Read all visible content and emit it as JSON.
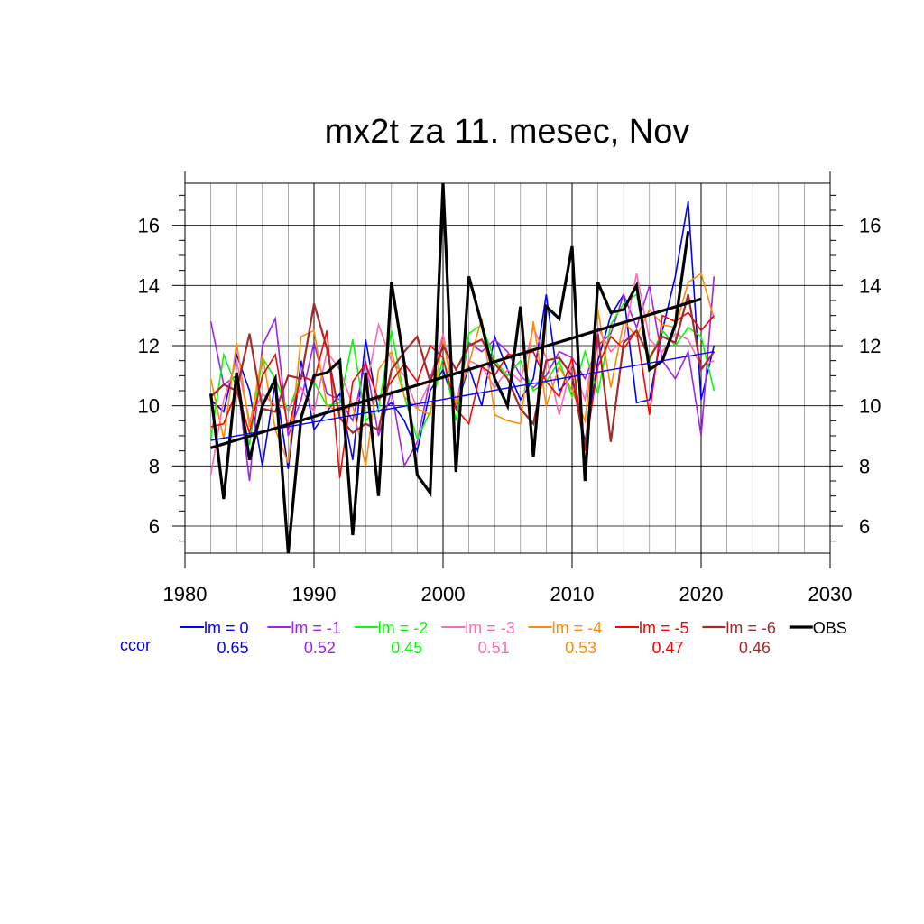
{
  "chart_data": {
    "type": "line",
    "title": "mx2t za 11. mesec, Nov",
    "xlabel": "",
    "ylabel": "",
    "xlim": [
      1980,
      2030
    ],
    "ylim": [
      5.1,
      17.4
    ],
    "x_ticks": [
      1980,
      1990,
      2000,
      2010,
      2020,
      2030
    ],
    "y_ticks": [
      6,
      8,
      10,
      12,
      14,
      16
    ],
    "grid": true,
    "legend_position": "bottom",
    "corr_label": "ccor",
    "series": [
      {
        "name": "lm = 0",
        "color": "#0000ff",
        "width": 1.6,
        "ccor": "0.65",
        "x": [
          1982,
          1983,
          1984,
          1985,
          1986,
          1987,
          1988,
          1989,
          1990,
          1991,
          1992,
          1993,
          1994,
          1995,
          1996,
          1997,
          1998,
          1999,
          2000,
          2001,
          2002,
          2003,
          2004,
          2005,
          2006,
          2007,
          2008,
          2009,
          2010,
          2011,
          2012,
          2013,
          2014,
          2015,
          2016,
          2017,
          2018,
          2019,
          2020,
          2021
        ],
        "values": [
          10.2,
          9.8,
          11.7,
          10.5,
          8.0,
          10.8,
          7.9,
          11.5,
          9.2,
          9.8,
          10.4,
          8.2,
          12.2,
          9.8,
          10.1,
          9.5,
          8.5,
          10.5,
          11.2,
          9.9,
          11.3,
          10.0,
          12.3,
          11.2,
          10.2,
          10.9,
          13.7,
          10.5,
          11.0,
          8.8,
          11.5,
          13.0,
          13.7,
          10.1,
          10.2,
          12.5,
          14.3,
          16.8,
          10.2,
          12.0
        ]
      },
      {
        "name": "lm = -1",
        "color": "#a020f0",
        "width": 1.6,
        "ccor": "0.52",
        "x": [
          1982,
          1983,
          1984,
          1985,
          1986,
          1987,
          1988,
          1989,
          1990,
          1991,
          1992,
          1993,
          1994,
          1995,
          1996,
          1997,
          1998,
          1999,
          2000,
          2001,
          2002,
          2003,
          2004,
          2005,
          2006,
          2007,
          2008,
          2009,
          2010,
          2011,
          2012,
          2013,
          2014,
          2015,
          2016,
          2017,
          2018,
          2019,
          2020,
          2021
        ],
        "values": [
          12.8,
          10.7,
          11.0,
          7.5,
          12.0,
          12.9,
          9.0,
          10.2,
          12.1,
          10.4,
          10.2,
          9.5,
          11.5,
          9.0,
          10.5,
          8.0,
          8.8,
          10.9,
          12.3,
          10.0,
          12.1,
          11.8,
          12.2,
          11.8,
          11.0,
          10.6,
          11.0,
          11.8,
          11.6,
          10.9,
          12.0,
          12.4,
          13.7,
          12.6,
          14.0,
          11.5,
          10.9,
          11.8,
          9.0,
          14.3
        ]
      },
      {
        "name": "lm = -2",
        "color": "#00ff00",
        "width": 1.6,
        "ccor": "0.45",
        "x": [
          1982,
          1983,
          1984,
          1985,
          1986,
          1987,
          1988,
          1989,
          1990,
          1991,
          1992,
          1993,
          1994,
          1995,
          1996,
          1997,
          1998,
          1999,
          2000,
          2001,
          2002,
          2003,
          2004,
          2005,
          2006,
          2007,
          2008,
          2009,
          2010,
          2011,
          2012,
          2013,
          2014,
          2015,
          2016,
          2017,
          2018,
          2019,
          2020,
          2021
        ],
        "values": [
          8.9,
          11.7,
          10.6,
          8.7,
          11.6,
          10.9,
          9.8,
          11.0,
          10.8,
          10.0,
          10.1,
          12.2,
          9.5,
          9.9,
          12.5,
          10.3,
          8.9,
          9.8,
          11.6,
          9.5,
          12.4,
          12.7,
          11.5,
          11.0,
          11.5,
          10.5,
          10.8,
          11.5,
          10.3,
          11.8,
          10.4,
          12.7,
          13.4,
          13.7,
          11.5,
          12.5,
          12.0,
          12.6,
          12.3,
          10.5
        ]
      },
      {
        "name": "lm = -3",
        "color": "#ff69b4",
        "width": 1.6,
        "ccor": "0.51",
        "x": [
          1982,
          1983,
          1984,
          1985,
          1986,
          1987,
          1988,
          1989,
          1990,
          1991,
          1992,
          1993,
          1994,
          1995,
          1996,
          1997,
          1998,
          1999,
          2000,
          2001,
          2002,
          2003,
          2004,
          2005,
          2006,
          2007,
          2008,
          2009,
          2010,
          2011,
          2012,
          2013,
          2014,
          2015,
          2016,
          2017,
          2018,
          2019,
          2020,
          2021
        ],
        "values": [
          7.7,
          10.2,
          11.5,
          9.5,
          10.4,
          10.0,
          9.9,
          10.6,
          9.8,
          11.8,
          11.2,
          10.0,
          10.5,
          12.7,
          11.5,
          11.0,
          9.9,
          10.8,
          12.4,
          10.1,
          11.5,
          11.3,
          10.6,
          11.2,
          10.8,
          12.6,
          11.6,
          9.7,
          11.4,
          10.2,
          12.6,
          11.8,
          12.2,
          14.4,
          12.2,
          11.8,
          12.4,
          12.2,
          11.3,
          11.5
        ]
      },
      {
        "name": "lm = -4",
        "color": "#ff8c00",
        "width": 1.6,
        "ccor": "0.53",
        "x": [
          1982,
          1983,
          1984,
          1985,
          1986,
          1987,
          1988,
          1989,
          1990,
          1991,
          1992,
          1993,
          1994,
          1995,
          1996,
          1997,
          1998,
          1999,
          2000,
          2001,
          2002,
          2003,
          2004,
          2005,
          2006,
          2007,
          2008,
          2009,
          2010,
          2011,
          2012,
          2013,
          2014,
          2015,
          2016,
          2017,
          2018,
          2019,
          2020,
          2021
        ],
        "values": [
          10.9,
          8.9,
          12.1,
          9.3,
          11.7,
          9.2,
          8.1,
          12.3,
          12.5,
          10.0,
          9.8,
          10.0,
          8.0,
          11.2,
          11.8,
          10.3,
          9.9,
          9.7,
          12.2,
          10.0,
          11.4,
          12.9,
          9.7,
          9.5,
          9.4,
          12.8,
          10.0,
          11.3,
          10.5,
          9.5,
          13.2,
          10.6,
          12.8,
          12.3,
          13.2,
          12.7,
          12.6,
          14.1,
          14.4,
          12.9
        ]
      },
      {
        "name": "lm = -5",
        "color": "#ff0000",
        "width": 1.6,
        "ccor": "0.47",
        "x": [
          1982,
          1983,
          1984,
          1985,
          1986,
          1987,
          1988,
          1989,
          1990,
          1991,
          1992,
          1993,
          1994,
          1995,
          1996,
          1997,
          1998,
          1999,
          2000,
          2001,
          2002,
          2003,
          2004,
          2005,
          2006,
          2007,
          2008,
          2009,
          2010,
          2011,
          2012,
          2013,
          2014,
          2015,
          2016,
          2017,
          2018,
          2019,
          2020,
          2021
        ],
        "values": [
          9.3,
          9.4,
          10.5,
          9.1,
          11.0,
          11.7,
          9.2,
          11.0,
          10.8,
          12.5,
          7.6,
          10.8,
          11.4,
          10.2,
          10.8,
          11.4,
          10.8,
          12.0,
          11.6,
          9.9,
          9.4,
          11.3,
          11.0,
          11.7,
          11.7,
          11.8,
          10.8,
          10.3,
          11.6,
          8.5,
          11.3,
          12.3,
          11.9,
          12.5,
          9.7,
          13.0,
          12.8,
          13.1,
          12.5,
          13.0
        ]
      },
      {
        "name": "lm = -6",
        "color": "#a52a2a",
        "width": 2.2,
        "ccor": "0.46",
        "x": [
          1982,
          1983,
          1984,
          1985,
          1986,
          1987,
          1988,
          1989,
          1990,
          1991,
          1992,
          1993,
          1994,
          1995,
          1996,
          1997,
          1998,
          1999,
          2000,
          2001,
          2002,
          2003,
          2004,
          2005,
          2006,
          2007,
          2008,
          2009,
          2010,
          2011,
          2012,
          2013,
          2014,
          2015,
          2016,
          2017,
          2018,
          2019,
          2020,
          2021
        ],
        "values": [
          10.3,
          10.7,
          10.5,
          12.4,
          9.9,
          9.8,
          11.0,
          10.9,
          13.4,
          11.9,
          9.6,
          9.1,
          9.4,
          9.2,
          11.2,
          11.8,
          12.3,
          10.8,
          12.0,
          11.2,
          12.0,
          12.2,
          11.4,
          10.9,
          9.9,
          9.4,
          11.5,
          11.6,
          11.0,
          8.6,
          12.4,
          8.8,
          12.1,
          12.5,
          11.6,
          12.3,
          12.1,
          13.7,
          11.2,
          11.8
        ]
      },
      {
        "name": "OBS",
        "color": "#000000",
        "width": 3.2,
        "ccor": "",
        "x": [
          1982,
          1983,
          1984,
          1985,
          1986,
          1987,
          1988,
          1989,
          1990,
          1991,
          1992,
          1993,
          1994,
          1995,
          1996,
          1997,
          1998,
          1999,
          2000,
          2001,
          2002,
          2003,
          2004,
          2005,
          2006,
          2007,
          2008,
          2009,
          2010,
          2011,
          2012,
          2013,
          2014,
          2015,
          2016,
          2017,
          2018,
          2019
        ],
        "values": [
          10.4,
          6.9,
          11.1,
          8.2,
          10.0,
          10.9,
          5.1,
          9.6,
          11.0,
          11.1,
          11.5,
          5.7,
          11.1,
          7.0,
          14.1,
          11.4,
          7.7,
          7.1,
          17.4,
          7.8,
          14.3,
          12.7,
          10.9,
          10.0,
          13.3,
          8.3,
          13.3,
          12.9,
          15.3,
          7.5,
          14.1,
          13.1,
          13.2,
          14.0,
          11.2,
          11.5,
          12.7,
          15.8
        ]
      }
    ],
    "trend_lines": [
      {
        "name": "lm = 0 trend",
        "color": "#0000ff",
        "width": 1.4,
        "x": [
          1982,
          2021
        ],
        "values": [
          8.85,
          11.8
        ]
      },
      {
        "name": "OBS trend",
        "color": "#000000",
        "width": 3.2,
        "x": [
          1982,
          2020
        ],
        "values": [
          8.6,
          13.55
        ]
      }
    ]
  }
}
